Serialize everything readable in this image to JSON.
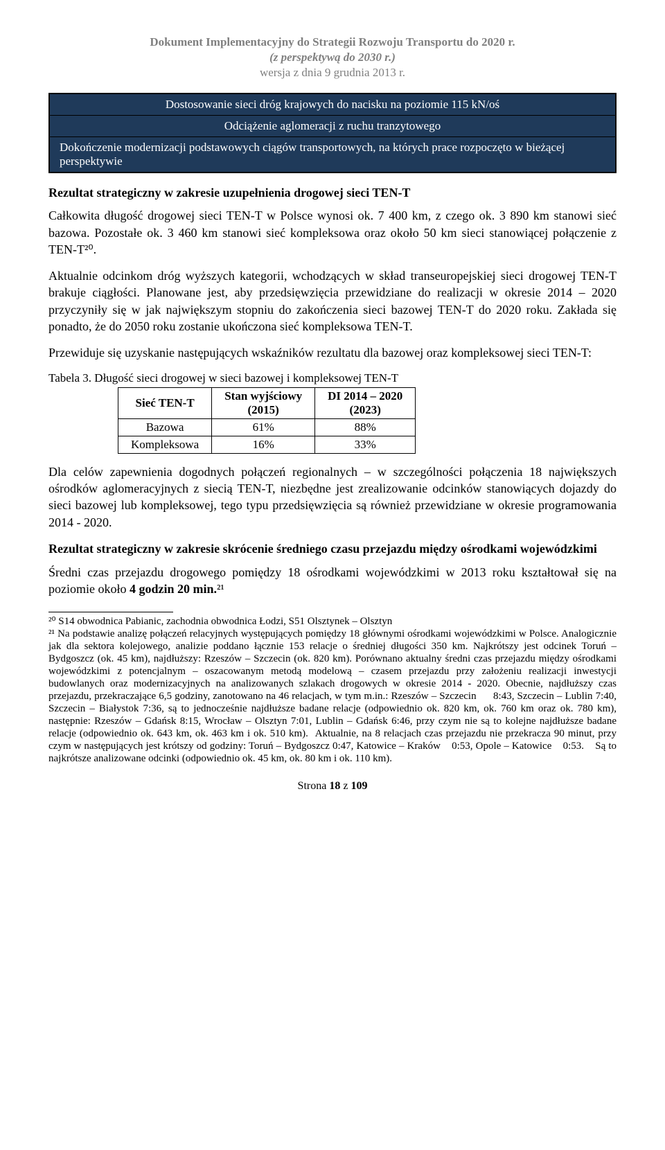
{
  "header": {
    "line1": "Dokument Implementacyjny do Strategii Rozwoju Transportu do 2020 r.",
    "line2": "(z perspektywą do 2030 r.)",
    "line3": "wersja z dnia 9 grudnia 2013 r."
  },
  "box": {
    "row1": "Dostosowanie sieci dróg krajowych do nacisku na poziomie 115 kN/oś",
    "row2": "Odciążenie aglomeracji z ruchu tranzytowego",
    "row3": "Dokończenie modernizacji podstawowych ciągów transportowych, na których prace rozpoczęto w bieżącej perspektywie"
  },
  "h1": "Rezultat strategiczny w zakresie uzupełnienia drogowej sieci TEN-T",
  "p1": "Całkowita długość drogowej sieci TEN-T w Polsce wynosi ok. 7 400 km, z czego ok. 3 890 km stanowi sieć bazowa. Pozostałe ok. 3 460 km stanowi sieć kompleksowa oraz około 50 km sieci stanowiącej połączenie z TEN-T²⁰.",
  "p2": "Aktualnie odcinkom dróg wyższych kategorii, wchodzących w skład transeuropejskiej sieci drogowej TEN-T brakuje ciągłości. Planowane jest, aby przedsięwzięcia przewidziane do realizacji w okresie 2014 – 2020 przyczyniły się w jak największym stopniu do zakończenia sieci bazowej TEN-T do 2020 roku. Zakłada się ponadto, że do 2050 roku zostanie ukończona sieć kompleksowa TEN-T.",
  "p3": "Przewiduje się uzyskanie następujących wskaźników rezultatu dla bazowej oraz kompleksowej sieci TEN-T:",
  "tableCaption": "Tabela 3. Długość sieci drogowej w sieci bazowej i kompleksowej TEN-T",
  "table": {
    "columns": [
      "Sieć TEN-T",
      "Stan wyjściowy\n(2015)",
      "DI 2014 – 2020\n(2023)"
    ],
    "rows": [
      [
        "Bazowa",
        "61%",
        "88%"
      ],
      [
        "Kompleksowa",
        "16%",
        "33%"
      ]
    ]
  },
  "p4": "Dla celów zapewnienia dogodnych połączeń regionalnych – w szczególności połączenia 18 największych ośrodków aglomeracyjnych z siecią TEN-T, niezbędne jest zrealizowanie odcinków stanowiących dojazdy do sieci bazowej lub kompleksowej, tego typu przedsięwzięcia są również przewidziane w okresie programowania 2014 - 2020.",
  "h2": "Rezultat strategiczny w zakresie skrócenie średniego czasu przejazdu między ośrodkami wojewódzkimi",
  "p5a": "Średni czas przejazdu drogowego pomiędzy 18 ośrodkami wojewódzkimi w 2013 roku kształtował się na poziomie około ",
  "p5b": "4 godzin 20 min.",
  "p5c": "²¹",
  "footnotes": {
    "f20": "²⁰ S14 obwodnica Pabianic, zachodnia obwodnica Łodzi, S51 Olsztynek – Olsztyn",
    "f21": "²¹ Na podstawie analizę połączeń relacyjnych występujących pomiędzy 18 głównymi ośrodkami wojewódzkimi w Polsce. Analogicznie jak dla sektora kolejowego, analizie poddano łącznie 153 relacje o średniej długości 350 km. Najkrótszy jest odcinek Toruń – Bydgoszcz (ok. 45 km), najdłuższy: Rzeszów – Szczecin (ok. 820 km). Porównano aktualny średni czas przejazdu między ośrodkami wojewódzkimi z potencjalnym – oszacowanym metodą modelową – czasem przejazdu przy założeniu realizacji inwestycji budowlanych oraz modernizacyjnych na analizowanych szlakach drogowych w okresie 2014 - 2020. Obecnie, najdłuższy czas przejazdu, przekraczające 6,5 godziny, zanotowano na 46 relacjach, w tym m.in.: Rzeszów – Szczecin      8:43, Szczecin – Lublin 7:40, Szczecin – Białystok 7:36, są to jednocześnie najdłuższe badane relacje (odpowiednio ok. 820 km, ok. 760 km oraz ok. 780 km), następnie: Rzeszów – Gdańsk 8:15, Wrocław – Olsztyn 7:01, Lublin – Gdańsk 6:46, przy czym nie są to kolejne najdłuższe badane relacje (odpowiednio ok. 643 km, ok. 463 km i ok. 510 km).  Aktualnie, na 8 relacjach czas przejazdu nie przekracza 90 minut, przy czym w następujących jest krótszy od godziny: Toruń – Bydgoszcz 0:47, Katowice – Kraków    0:53, Opole – Katowice    0:53.    Są to najkrótsze analizowane odcinki (odpowiednio ok. 45 km, ok. 80 km i ok. 110 km)."
  },
  "footer": {
    "a": "Strona ",
    "b": "18",
    "c": " z ",
    "d": "109"
  }
}
